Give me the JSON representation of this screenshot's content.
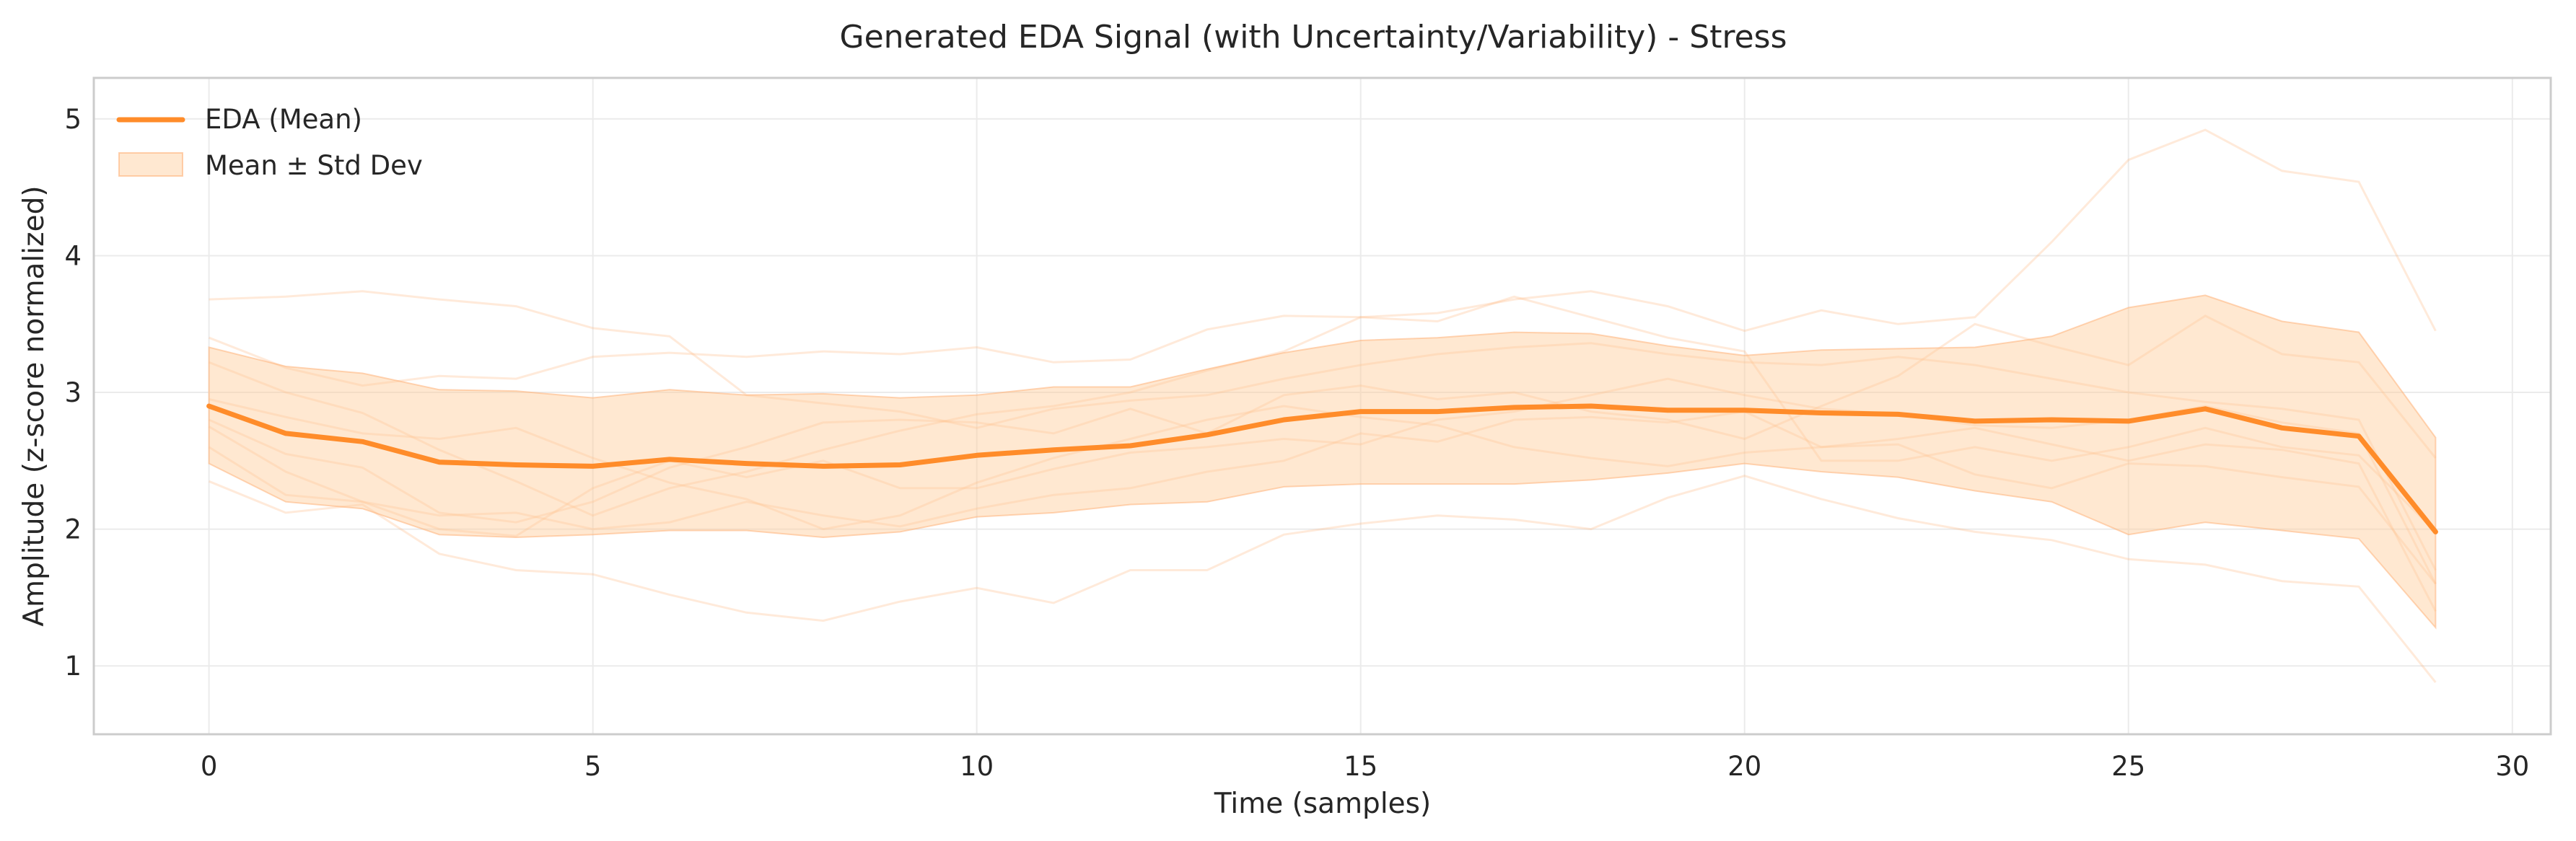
{
  "chart_data": {
    "type": "line",
    "title": "Generated EDA Signal (with Uncertainty/Variability) - Stress",
    "xlabel": "Time (samples)",
    "ylabel": "Amplitude (z-score normalized)",
    "xlim": [
      -1.5,
      30.5
    ],
    "ylim": [
      0.5,
      5.3
    ],
    "xticks": [
      0,
      5,
      10,
      15,
      20,
      25,
      30
    ],
    "yticks": [
      1,
      2,
      3,
      4,
      5
    ],
    "grid": true,
    "legend_position": "top-left",
    "colors": {
      "mean": "#ff8c2a",
      "band": "#ffcc99",
      "samples": "#ffb27a",
      "grid": "#ebebeb",
      "frame": "#cccccc"
    },
    "x": [
      0,
      1,
      2,
      3,
      4,
      5,
      6,
      7,
      8,
      9,
      10,
      11,
      12,
      13,
      14,
      15,
      16,
      17,
      18,
      19,
      20,
      21,
      22,
      23,
      24,
      25,
      26,
      27,
      28,
      29
    ],
    "series": [
      {
        "name": "EDA (Mean)",
        "values": [
          2.9,
          2.7,
          2.64,
          2.49,
          2.47,
          2.46,
          2.51,
          2.48,
          2.46,
          2.47,
          2.54,
          2.58,
          2.61,
          2.69,
          2.8,
          2.86,
          2.86,
          2.89,
          2.9,
          2.87,
          2.87,
          2.85,
          2.84,
          2.79,
          2.8,
          2.79,
          2.88,
          2.74,
          2.68,
          1.98
        ]
      },
      {
        "name": "Mean ± Std Dev",
        "lower": [
          2.48,
          2.2,
          2.15,
          1.96,
          1.94,
          1.96,
          1.99,
          1.99,
          1.94,
          1.98,
          2.09,
          2.12,
          2.18,
          2.2,
          2.31,
          2.33,
          2.33,
          2.33,
          2.36,
          2.41,
          2.48,
          2.42,
          2.38,
          2.28,
          2.2,
          1.96,
          2.05,
          1.99,
          1.93,
          1.28
        ],
        "upper": [
          3.33,
          3.19,
          3.14,
          3.02,
          3.01,
          2.96,
          3.02,
          2.98,
          2.99,
          2.96,
          2.98,
          3.04,
          3.04,
          3.17,
          3.29,
          3.38,
          3.4,
          3.44,
          3.43,
          3.34,
          3.27,
          3.31,
          3.32,
          3.33,
          3.41,
          3.62,
          3.71,
          3.52,
          3.44,
          2.67
        ]
      }
    ],
    "samples": [
      [
        3.68,
        3.7,
        3.74,
        3.68,
        3.63,
        3.47,
        3.41,
        2.98,
        2.92,
        2.86,
        2.74,
        2.88,
        2.94,
        2.98,
        3.1,
        3.2,
        3.28,
        3.33,
        3.36,
        3.28,
        3.22,
        3.2,
        3.26,
        3.2,
        3.1,
        3.0,
        2.93,
        2.88,
        2.8,
        1.7
      ],
      [
        2.35,
        2.12,
        2.18,
        1.82,
        1.7,
        1.67,
        1.52,
        1.39,
        1.33,
        1.47,
        1.57,
        1.46,
        1.7,
        1.7,
        1.96,
        2.04,
        2.1,
        2.07,
        2.0,
        2.23,
        2.39,
        2.22,
        2.08,
        1.98,
        1.92,
        1.78,
        1.74,
        1.62,
        1.58,
        0.88
      ],
      [
        3.4,
        3.18,
        3.05,
        3.12,
        3.1,
        3.26,
        3.29,
        3.26,
        3.3,
        3.28,
        3.33,
        3.22,
        3.24,
        3.46,
        3.56,
        3.55,
        3.58,
        3.68,
        3.74,
        3.63,
        3.45,
        3.6,
        3.5,
        3.55,
        4.1,
        4.7,
        4.92,
        4.62,
        4.54,
        3.45
      ],
      [
        2.8,
        2.55,
        2.45,
        2.12,
        2.05,
        2.2,
        2.45,
        2.6,
        2.78,
        2.8,
        2.78,
        2.7,
        2.88,
        2.7,
        2.98,
        3.05,
        2.95,
        3.0,
        2.86,
        2.8,
        2.66,
        2.9,
        3.12,
        3.5,
        3.34,
        3.2,
        3.56,
        3.28,
        3.22,
        2.52
      ],
      [
        3.22,
        3.0,
        2.85,
        2.58,
        2.35,
        2.1,
        2.3,
        2.42,
        2.58,
        2.72,
        2.84,
        2.9,
        3.0,
        3.16,
        3.3,
        3.55,
        3.52,
        3.7,
        3.55,
        3.4,
        3.3,
        2.5,
        2.5,
        2.6,
        2.5,
        2.6,
        2.74,
        2.6,
        2.54,
        1.98
      ],
      [
        2.6,
        2.25,
        2.2,
        2.1,
        2.12,
        2.0,
        2.05,
        2.2,
        2.1,
        2.02,
        2.15,
        2.25,
        2.3,
        2.42,
        2.5,
        2.7,
        2.64,
        2.8,
        2.82,
        2.78,
        2.86,
        2.6,
        2.62,
        2.4,
        2.3,
        2.48,
        2.46,
        2.38,
        2.31,
        1.6
      ],
      [
        2.75,
        2.42,
        2.2,
        2.0,
        1.95,
        2.3,
        2.5,
        2.38,
        2.5,
        2.3,
        2.3,
        2.44,
        2.56,
        2.6,
        2.66,
        2.62,
        2.8,
        2.86,
        2.98,
        3.1,
        2.98,
        2.88,
        2.84,
        2.76,
        2.74,
        2.8,
        2.9,
        2.78,
        2.7,
        1.6
      ],
      [
        2.95,
        2.82,
        2.7,
        2.66,
        2.74,
        2.52,
        2.34,
        2.22,
        2.0,
        2.1,
        2.34,
        2.52,
        2.66,
        2.8,
        2.9,
        2.82,
        2.76,
        2.6,
        2.52,
        2.46,
        2.56,
        2.6,
        2.66,
        2.74,
        2.62,
        2.5,
        2.62,
        2.58,
        2.48,
        1.4
      ]
    ]
  },
  "legend": {
    "mean_label": "EDA (Mean)",
    "band_label": "Mean ± Std Dev"
  }
}
